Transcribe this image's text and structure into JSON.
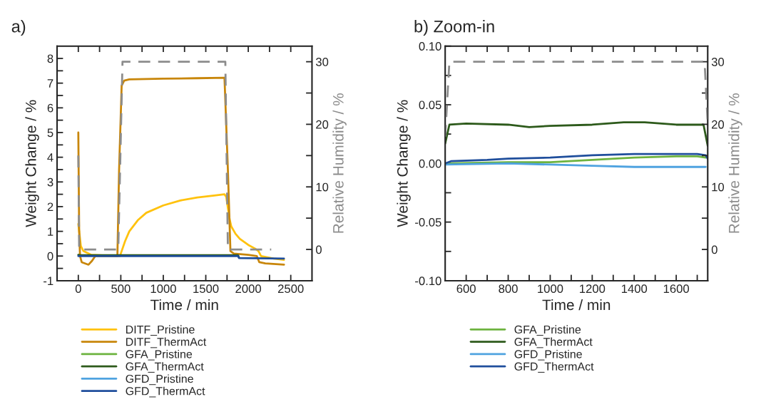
{
  "chart_data": [
    {
      "type": "line",
      "title": "a)",
      "xlabel": "Time / min",
      "ylabel": "Weight Change / %",
      "y2label": "Relative Humidity / %",
      "legend": "bottom",
      "line_style": "solid",
      "xlim": [
        -250,
        2750
      ],
      "xticks": [
        0,
        {
          "value": 250,
          "label": null
        },
        500,
        {
          "value": 750,
          "label": null
        },
        1000,
        {
          "value": 1250,
          "label": null
        },
        1500,
        {
          "value": 1750,
          "label": null
        },
        2000,
        {
          "value": 2250,
          "label": null
        },
        2500
      ],
      "ylim": [
        -1,
        8.5
      ],
      "yticks": [
        -1,
        {
          "value": -0.5,
          "label": null
        },
        0,
        {
          "value": 0.5,
          "label": null
        },
        1,
        {
          "value": 1.5,
          "label": null
        },
        2,
        {
          "value": 2.5,
          "label": null
        },
        3,
        {
          "value": 3.5,
          "label": null
        },
        4,
        {
          "value": 4.5,
          "label": null
        },
        5,
        {
          "value": 5.5,
          "label": null
        },
        6,
        {
          "value": 6.5,
          "label": null
        },
        7,
        {
          "value": 7.5,
          "label": null
        },
        8
      ],
      "y2lim": [
        -5,
        32.5
      ],
      "y2ticks": [
        0,
        {
          "value": 5,
          "label": null
        },
        10,
        {
          "value": 15,
          "label": null
        },
        20,
        {
          "value": 25,
          "label": null
        },
        30
      ],
      "series": [
        {
          "name": "DITF_Pristine",
          "color": "#ffc20e",
          "x": [
            0,
            30,
            60,
            150,
            460,
            490,
            510,
            550,
            600,
            700,
            800,
            1000,
            1200,
            1400,
            1600,
            1720,
            1740,
            1780,
            1800,
            1850,
            1900,
            2000,
            2080,
            2120,
            2150,
            2300,
            2420
          ],
          "values": [
            1.3,
            0.4,
            0.2,
            0.05,
            0.0,
            0.0,
            0.2,
            0.6,
            1.0,
            1.45,
            1.75,
            2.05,
            2.25,
            2.37,
            2.45,
            2.5,
            2.4,
            1.5,
            1.2,
            0.9,
            0.7,
            0.45,
            0.3,
            0.2,
            0.0,
            -0.1,
            -0.15
          ]
        },
        {
          "name": "DITF_ThermAct",
          "color": "#c8860a",
          "x": [
            0,
            10,
            20,
            40,
            80,
            120,
            160,
            200,
            460,
            480,
            510,
            540,
            600,
            1000,
            1400,
            1720,
            1760,
            1790,
            1830,
            2000,
            2100,
            2130,
            2200,
            2420
          ],
          "values": [
            5.0,
            1.0,
            0.0,
            -0.25,
            -0.3,
            -0.35,
            -0.2,
            0.0,
            0.0,
            3.5,
            6.9,
            7.1,
            7.15,
            7.18,
            7.2,
            7.22,
            3.5,
            0.2,
            0.1,
            0.05,
            0.0,
            -0.25,
            -0.3,
            -0.35
          ]
        },
        {
          "name": "GFA_Pristine",
          "color": "#6db33f"
        },
        {
          "name": "GFA_ThermAct",
          "color": "#2d5a1b",
          "x": [
            0,
            20,
            1880,
            1890
          ],
          "values": [
            0.05,
            0.03,
            0.03,
            -0.05
          ]
        },
        {
          "name": "GFD_Pristine",
          "color": "#4fa3e0"
        },
        {
          "name": "GFD_ThermAct",
          "color": "#1f4e9c",
          "x": [
            0,
            1880,
            1890,
            2420
          ],
          "values": [
            0.0,
            0.0,
            -0.08,
            -0.1
          ]
        },
        {
          "color": "#8c8c8c",
          "axis": "y2",
          "line_style": "dashed",
          "x": [
            0,
            10,
            470,
            520,
            1730,
            1760,
            2270
          ],
          "values": [
            15,
            0,
            0,
            30,
            30,
            0,
            0
          ]
        }
      ]
    },
    {
      "type": "line",
      "title": "b) Zoom-in",
      "xlabel": "Time / min",
      "ylabel": "Weight Change / %",
      "y2label": "Relative Humidity / %",
      "legend": "bottom",
      "line_style": "solid",
      "xlim": [
        500,
        1750
      ],
      "xticks": [
        600,
        {
          "value": 700,
          "label": null
        },
        800,
        {
          "value": 900,
          "label": null
        },
        1000,
        {
          "value": 1100,
          "label": null
        },
        1200,
        {
          "value": 1300,
          "label": null
        },
        1400,
        {
          "value": 1500,
          "label": null
        },
        1600,
        {
          "value": 1700,
          "label": null
        }
      ],
      "ylim": [
        -0.1,
        0.1
      ],
      "yticks": [
        {
          "value": -0.1,
          "label": "-0.10"
        },
        {
          "value": -0.075,
          "label": null
        },
        -0.05,
        {
          "value": -0.025,
          "label": null
        },
        {
          "value": 0,
          "label": "0.00"
        },
        {
          "value": 0.025,
          "label": null
        },
        0.05,
        {
          "value": 0.075,
          "label": null
        },
        {
          "value": 0.1,
          "label": "0.10"
        }
      ],
      "y2lim": [
        -5,
        32.5
      ],
      "y2ticks": [
        0,
        {
          "value": 5,
          "label": null
        },
        10,
        {
          "value": 15,
          "label": null
        },
        20,
        {
          "value": 25,
          "label": null
        },
        30
      ],
      "series": [
        {
          "name": "GFA_Pristine",
          "color": "#6db33f",
          "x": [
            500,
            800,
            1000,
            1200,
            1400,
            1600,
            1700,
            1740
          ],
          "values": [
            0.0,
            0.001,
            0.001,
            0.003,
            0.005,
            0.006,
            0.006,
            0.005
          ]
        },
        {
          "name": "GFA_ThermAct",
          "color": "#2d5a1b",
          "x": [
            500,
            520,
            600,
            800,
            900,
            1000,
            1200,
            1350,
            1450,
            1600,
            1730,
            1750
          ],
          "values": [
            0.017,
            0.033,
            0.034,
            0.033,
            0.031,
            0.032,
            0.033,
            0.035,
            0.035,
            0.033,
            0.033,
            0.015
          ]
        },
        {
          "name": "GFD_Pristine",
          "color": "#4fa3e0",
          "x": [
            500,
            800,
            1000,
            1200,
            1400,
            1600,
            1740
          ],
          "values": [
            -0.001,
            0.0,
            -0.001,
            -0.002,
            -0.003,
            -0.003,
            -0.003
          ]
        },
        {
          "name": "GFD_ThermAct",
          "color": "#1f4e9c",
          "x": [
            500,
            530,
            700,
            800,
            1000,
            1200,
            1400,
            1600,
            1700,
            1740,
            1750
          ],
          "values": [
            0.0,
            0.002,
            0.003,
            0.004,
            0.005,
            0.007,
            0.008,
            0.008,
            0.008,
            0.007,
            0.004
          ]
        },
        {
          "color": "#8c8c8c",
          "axis": "y2",
          "line_style": "dashed",
          "x": [
            500,
            520,
            1735,
            1750
          ],
          "values": [
            18,
            30,
            30,
            20
          ]
        }
      ]
    }
  ]
}
